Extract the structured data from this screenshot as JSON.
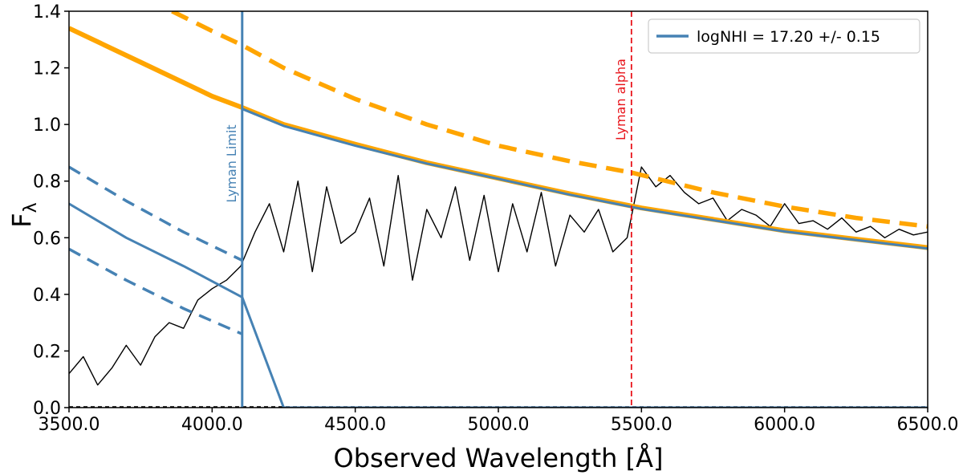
{
  "chart_data": {
    "type": "line",
    "title": "",
    "xlabel": "Observed Wavelength [Å]",
    "ylabel": "F",
    "ylabel_subscript": "λ",
    "xlim": [
      3500,
      6500
    ],
    "ylim": [
      0.0,
      1.4
    ],
    "x_tick_values": [
      3500,
      4000,
      4500,
      5000,
      5500,
      6000,
      6500
    ],
    "x_tick_labels": [
      "3500.0",
      "4000.0",
      "4500.0",
      "5000.0",
      "5500.0",
      "6000.0",
      "6500.0"
    ],
    "y_tick_values": [
      0.0,
      0.2,
      0.4,
      0.6,
      0.8,
      1.0,
      1.2,
      1.4
    ],
    "y_tick_labels": [
      "0.0",
      "0.2",
      "0.4",
      "0.6",
      "0.8",
      "1.0",
      "1.2",
      "1.4"
    ],
    "legend": {
      "label": "logNHI = 17.20 +/- 0.15",
      "placement": "upper-right",
      "color": "#4682b4"
    },
    "vertical_lines": [
      {
        "name": "Lyman Limit",
        "x": 4105,
        "color": "#4682b4",
        "style": "solid"
      },
      {
        "name": "Lyman alpha",
        "x": 5465,
        "color": "#e8141b",
        "style": "dashed"
      }
    ],
    "zero_line": {
      "y": 0.0,
      "color": "#000000",
      "style": "dashed"
    },
    "series": [
      {
        "name": "spectrum flux",
        "color": "#000000",
        "style": "solid",
        "x": [
          3500,
          3550,
          3600,
          3650,
          3700,
          3750,
          3800,
          3850,
          3900,
          3950,
          4000,
          4050,
          4100,
          4150,
          4200,
          4250,
          4300,
          4350,
          4400,
          4450,
          4500,
          4550,
          4600,
          4650,
          4700,
          4750,
          4800,
          4850,
          4900,
          4950,
          5000,
          5050,
          5100,
          5150,
          5200,
          5250,
          5300,
          5350,
          5400,
          5450,
          5500,
          5550,
          5600,
          5650,
          5700,
          5750,
          5800,
          5850,
          5900,
          5950,
          6000,
          6050,
          6100,
          6150,
          6200,
          6250,
          6300,
          6350,
          6400,
          6450,
          6500
        ],
        "y": [
          0.12,
          0.18,
          0.08,
          0.14,
          0.22,
          0.15,
          0.25,
          0.3,
          0.28,
          0.38,
          0.42,
          0.45,
          0.5,
          0.62,
          0.72,
          0.55,
          0.8,
          0.48,
          0.78,
          0.58,
          0.62,
          0.74,
          0.5,
          0.82,
          0.45,
          0.7,
          0.6,
          0.78,
          0.52,
          0.75,
          0.48,
          0.72,
          0.55,
          0.76,
          0.5,
          0.68,
          0.62,
          0.7,
          0.55,
          0.6,
          0.85,
          0.78,
          0.82,
          0.76,
          0.72,
          0.74,
          0.66,
          0.7,
          0.68,
          0.64,
          0.72,
          0.65,
          0.66,
          0.63,
          0.67,
          0.62,
          0.64,
          0.6,
          0.63,
          0.61,
          0.62
        ]
      },
      {
        "name": "continuum (solid orange)",
        "color": "#ffa500",
        "style": "solid",
        "thick": true,
        "x": [
          3500,
          3750,
          4000,
          4105,
          4250,
          4500,
          4750,
          5000,
          5250,
          5500,
          5750,
          6000,
          6250,
          6500
        ],
        "y": [
          1.34,
          1.22,
          1.1,
          1.06,
          1.0,
          0.93,
          0.865,
          0.81,
          0.755,
          0.705,
          0.665,
          0.625,
          0.595,
          0.565
        ]
      },
      {
        "name": "continuum upper (dashed orange)",
        "color": "#ffa500",
        "style": "dashed",
        "x": [
          3860,
          4000,
          4105,
          4250,
          4500,
          4750,
          5000,
          5250,
          5465
        ],
        "y": [
          1.4,
          1.33,
          1.28,
          1.2,
          1.09,
          1.0,
          0.925,
          0.87,
          0.83
        ]
      },
      {
        "name": "continuum lower after Lya (dashed orange)",
        "color": "#ffa500",
        "style": "dashed",
        "x": [
          5465,
          5750,
          6000,
          6250,
          6500
        ],
        "y": [
          0.83,
          0.76,
          0.71,
          0.67,
          0.64
        ]
      },
      {
        "name": "logNHI model (solid blue)",
        "color": "#4682b4",
        "style": "solid",
        "x": [
          3500,
          3700,
          3900,
          4105,
          4250,
          4500,
          4750,
          5000,
          5250,
          5500,
          5750,
          6000,
          6250,
          6500
        ],
        "y": [
          0.72,
          0.6,
          0.5,
          0.39,
          0.0,
          0.0,
          0.0,
          0.0,
          0.0,
          0.0,
          0.0,
          0.0,
          0.0,
          0.0
        ]
      },
      {
        "name": "logNHI upper bound (dashed blue)",
        "color": "#4682b4",
        "style": "dashed",
        "x": [
          3500,
          3700,
          3900,
          4105
        ],
        "y": [
          0.85,
          0.73,
          0.62,
          0.52
        ]
      },
      {
        "name": "logNHI lower bound (dashed blue)",
        "color": "#4682b4",
        "style": "dashed",
        "x": [
          3500,
          3700,
          3900,
          4105
        ],
        "y": [
          0.56,
          0.45,
          0.35,
          0.26
        ]
      },
      {
        "name": "logNHI model beyond Lyman limit (blue)",
        "color": "#4682b4",
        "style": "solid",
        "x": [
          4105,
          4250,
          4500,
          4750,
          5000,
          5250,
          5500,
          5750,
          6000,
          6250,
          6500
        ],
        "y": [
          1.055,
          0.995,
          0.925,
          0.862,
          0.808,
          0.752,
          0.702,
          0.662,
          0.622,
          0.592,
          0.562
        ]
      }
    ]
  }
}
